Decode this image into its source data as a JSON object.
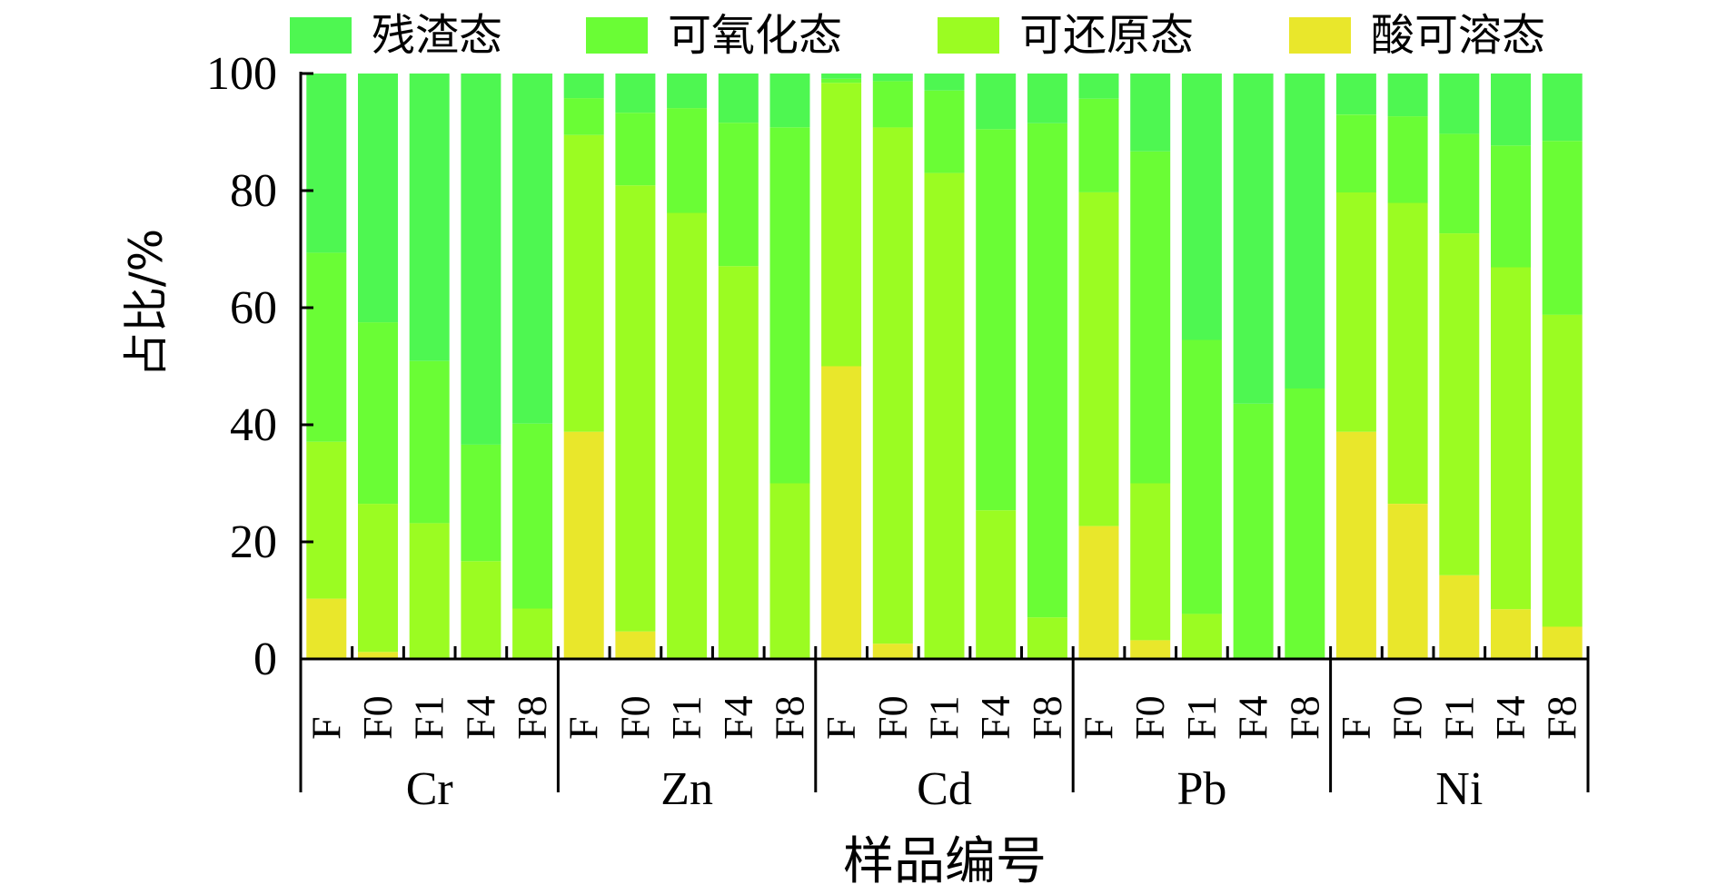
{
  "chart_data": {
    "type": "bar",
    "stacked": true,
    "title": "",
    "xlabel": "样品编号",
    "ylabel": "占比/%",
    "ylim": [
      0,
      100
    ],
    "yticks": [
      0,
      20,
      40,
      60,
      80,
      100
    ],
    "grid": false,
    "legend_position": "top",
    "groups": [
      "Cr",
      "Zn",
      "Cd",
      "Pb",
      "Ni"
    ],
    "samples": [
      "F",
      "F0",
      "F1",
      "F4",
      "F8"
    ],
    "categories": [
      "Cr-F",
      "Cr-F0",
      "Cr-F1",
      "Cr-F4",
      "Cr-F8",
      "Zn-F",
      "Zn-F0",
      "Zn-F1",
      "Zn-F4",
      "Zn-F8",
      "Cd-F",
      "Cd-F0",
      "Cd-F1",
      "Cd-F4",
      "Cd-F8",
      "Pb-F",
      "Pb-F0",
      "Pb-F1",
      "Pb-F4",
      "Pb-F8",
      "Ni-F",
      "Ni-F0",
      "Ni-F1",
      "Ni-F4",
      "Ni-F8"
    ],
    "series": [
      {
        "name": "酸可溶态",
        "color": "#E9E72B",
        "values": [
          10.3,
          1.2,
          0,
          0,
          0,
          38.8,
          4.7,
          0,
          0,
          0,
          50.0,
          2.6,
          0,
          0,
          0,
          22.7,
          3.2,
          0,
          0,
          0,
          38.8,
          26.5,
          14.3,
          8.5,
          5.5
        ]
      },
      {
        "name": "可还原态",
        "color": "#9BFC22",
        "values": [
          26.8,
          25.3,
          23.2,
          16.7,
          8.6,
          50.7,
          76.2,
          76.2,
          67.1,
          30.0,
          48.4,
          88.2,
          83.0,
          25.4,
          7.1,
          57.0,
          26.8,
          7.7,
          0,
          0,
          40.9,
          51.4,
          58.4,
          58.4,
          53.3
        ]
      },
      {
        "name": "可氧化态",
        "color": "#6AFD35",
        "values": [
          32.3,
          31.0,
          27.7,
          19.9,
          31.6,
          6.3,
          12.4,
          17.9,
          24.5,
          60.8,
          0.7,
          7.9,
          14.1,
          65.1,
          84.4,
          16.0,
          56.7,
          46.8,
          43.6,
          46.2,
          13.3,
          14.8,
          17.0,
          20.8,
          29.7
        ]
      },
      {
        "name": "残渣态",
        "color": "#4EF751",
        "values": [
          30.6,
          42.5,
          49.1,
          63.4,
          59.8,
          4.2,
          6.7,
          5.9,
          8.4,
          9.2,
          0.9,
          1.3,
          2.9,
          9.5,
          8.5,
          4.3,
          13.3,
          45.5,
          56.4,
          53.8,
          7.0,
          7.3,
          10.3,
          12.3,
          11.5
        ]
      }
    ]
  },
  "legend": {
    "items": [
      {
        "label": "残渣态",
        "color": "#4EF751"
      },
      {
        "label": "可氧化态",
        "color": "#6AFD35"
      },
      {
        "label": "可还原态",
        "color": "#9BFC22"
      },
      {
        "label": "酸可溶态",
        "color": "#E9E72B"
      }
    ]
  },
  "axes": {
    "x_title": "样品编号",
    "y_title": "占比/%",
    "y_tick_labels": [
      "0",
      "20",
      "40",
      "60",
      "80",
      "100"
    ]
  }
}
